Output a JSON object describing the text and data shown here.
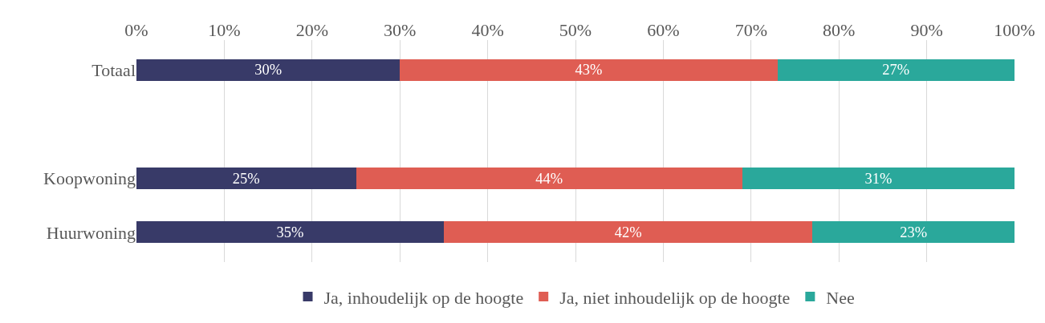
{
  "chart_data": {
    "type": "bar",
    "orientation": "horizontal",
    "stacked": true,
    "categories": [
      "Totaal",
      null,
      "Koopwoning",
      "Huurwoning"
    ],
    "series": [
      {
        "name": "Ja, inhoudelijk op de hoogte",
        "color": "#383a68",
        "values": [
          30,
          null,
          25,
          35
        ],
        "value_labels": [
          "30%",
          null,
          "25%",
          "35%"
        ]
      },
      {
        "name": "Ja, niet inhoudelijk op de hoogte",
        "color": "#df5d53",
        "values": [
          43,
          null,
          44,
          42
        ],
        "value_labels": [
          "43%",
          null,
          "44%",
          "42%"
        ]
      },
      {
        "name": "Nee",
        "color": "#2aa89b",
        "values": [
          27,
          null,
          31,
          23
        ],
        "value_labels": [
          "27%",
          null,
          "31%",
          "23%"
        ]
      }
    ],
    "xlim": [
      0,
      100
    ],
    "xticks": [
      {
        "value": 0,
        "label": "0%"
      },
      {
        "value": 10,
        "label": "10%"
      },
      {
        "value": 20,
        "label": "20%"
      },
      {
        "value": 30,
        "label": "30%"
      },
      {
        "value": 40,
        "label": "40%"
      },
      {
        "value": 50,
        "label": "50%"
      },
      {
        "value": 60,
        "label": "60%"
      },
      {
        "value": 70,
        "label": "70%"
      },
      {
        "value": 80,
        "label": "80%"
      },
      {
        "value": 90,
        "label": "90%"
      },
      {
        "value": 100,
        "label": "100%"
      }
    ],
    "grid": "x",
    "legend": "bottom"
  }
}
